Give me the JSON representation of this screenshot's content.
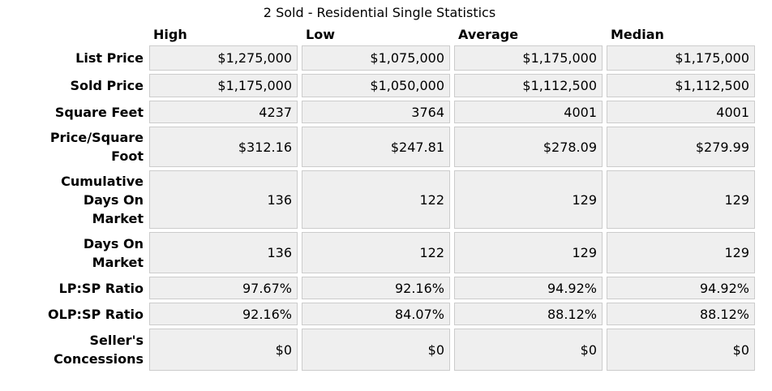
{
  "title": "2 Sold - Residential Single Statistics",
  "colors": {
    "cell_background": "#efefef",
    "cell_border": "#cccccc",
    "text": "#000000",
    "page_background": "#ffffff"
  },
  "table": {
    "columns": [
      "High",
      "Low",
      "Average",
      "Median"
    ],
    "rows": [
      {
        "label": "List Price",
        "values": [
          "$1,275,000",
          "$1,075,000",
          "$1,175,000",
          "$1,175,000"
        ]
      },
      {
        "label": "Sold Price",
        "values": [
          "$1,175,000",
          "$1,050,000",
          "$1,112,500",
          "$1,112,500"
        ]
      },
      {
        "label": "Square Feet",
        "values": [
          "4237",
          "3764",
          "4001",
          "4001"
        ]
      },
      {
        "label": "Price/Square\nFoot",
        "values": [
          "$312.16",
          "$247.81",
          "$278.09",
          "$279.99"
        ]
      },
      {
        "label": "Cumulative\nDays On\nMarket",
        "values": [
          "136",
          "122",
          "129",
          "129"
        ]
      },
      {
        "label": "Days On\nMarket",
        "values": [
          "136",
          "122",
          "129",
          "129"
        ]
      },
      {
        "label": "LP:SP Ratio",
        "values": [
          "97.67%",
          "92.16%",
          "94.92%",
          "94.92%"
        ]
      },
      {
        "label": "OLP:SP Ratio",
        "values": [
          "92.16%",
          "84.07%",
          "88.12%",
          "88.12%"
        ]
      },
      {
        "label": "Seller's\nConcessions",
        "values": [
          "$0",
          "$0",
          "$0",
          "$0"
        ]
      }
    ]
  }
}
